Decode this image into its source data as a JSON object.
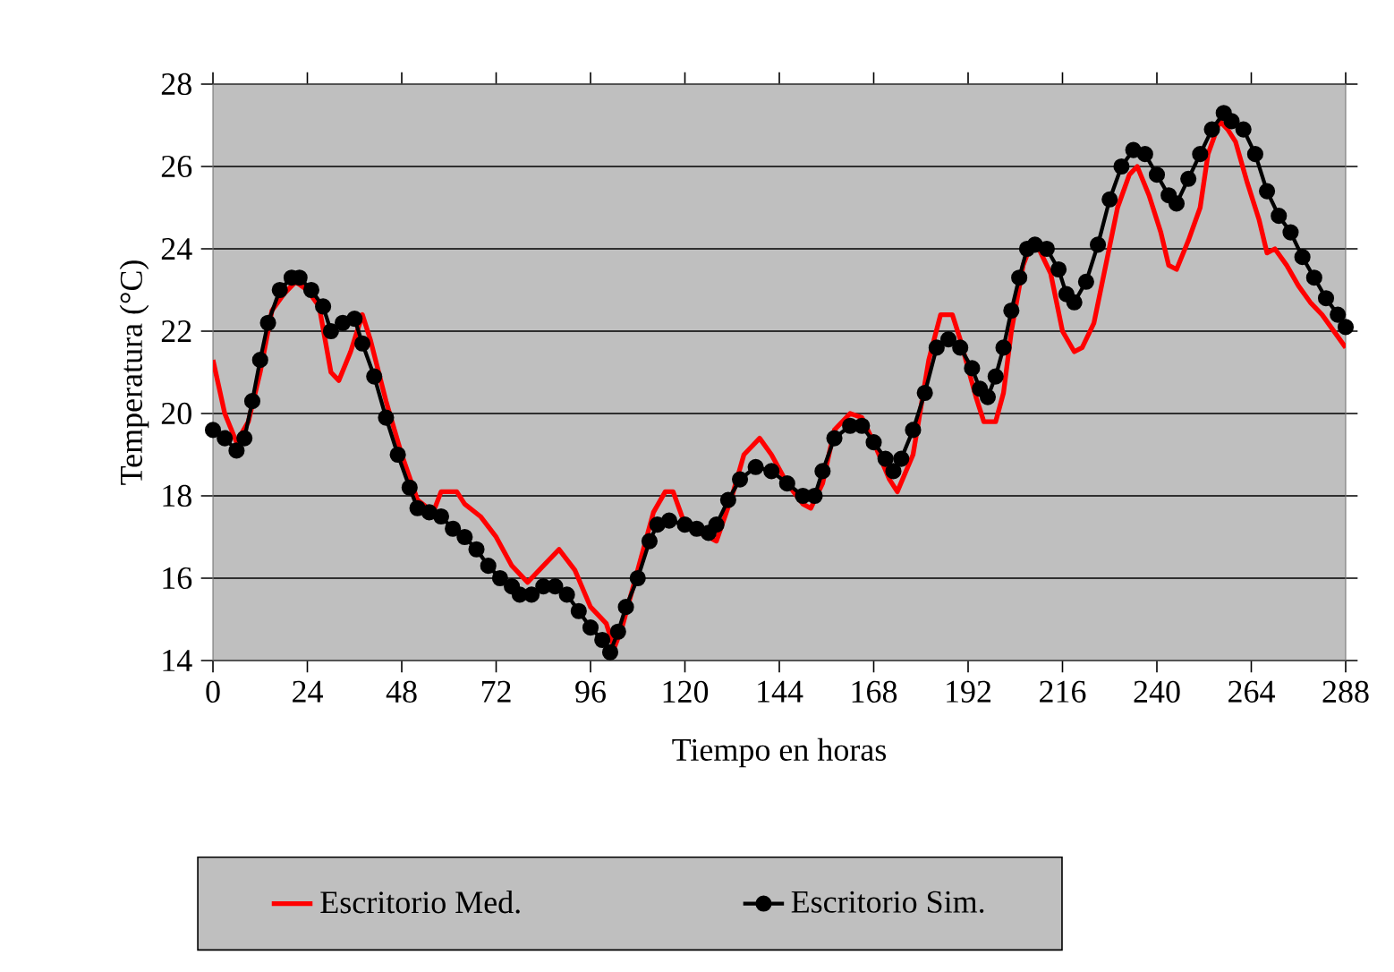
{
  "chart_data": {
    "type": "line",
    "xlabel": "Tiempo en horas",
    "ylabel": "Temperatura (°C)",
    "xlim": [
      0,
      288
    ],
    "xticks": [
      0,
      24,
      48,
      72,
      96,
      120,
      144,
      168,
      192,
      216,
      240,
      264,
      288
    ],
    "ylim": [
      14,
      28
    ],
    "yticks": [
      14,
      16,
      18,
      20,
      22,
      24,
      26,
      28
    ],
    "grid": "y",
    "legend": "bottom",
    "series": [
      {
        "name": "Escritorio Med.",
        "color": "#ff0000",
        "marker": "none",
        "x": [
          0,
          3,
          6,
          9,
          12,
          15,
          18,
          21,
          24,
          27,
          30,
          32,
          35,
          38,
          40,
          44,
          48,
          52,
          56,
          58,
          62,
          64,
          68,
          72,
          76,
          80,
          84,
          88,
          92,
          96,
          100,
          102,
          104,
          108,
          112,
          115,
          117,
          120,
          124,
          128,
          132,
          135,
          139,
          142,
          146,
          150,
          152,
          155,
          158,
          162,
          165,
          168,
          172,
          174,
          178,
          182,
          185,
          188,
          190,
          194,
          196,
          199,
          201,
          203,
          206,
          208,
          210,
          213,
          216,
          219,
          221,
          224,
          227,
          230,
          233,
          235,
          238,
          241,
          243,
          245,
          248,
          251,
          253,
          256,
          258,
          260,
          263,
          266,
          268,
          270,
          273,
          276,
          279,
          282,
          285,
          288
        ],
        "values": [
          21.3,
          20.0,
          19.3,
          19.8,
          21.0,
          22.5,
          22.9,
          23.2,
          23.0,
          22.6,
          21.0,
          20.8,
          21.5,
          22.4,
          21.8,
          20.3,
          19.0,
          17.9,
          17.6,
          18.1,
          18.1,
          17.8,
          17.5,
          17.0,
          16.3,
          15.9,
          16.3,
          16.7,
          16.2,
          15.3,
          14.9,
          14.3,
          14.8,
          null,
          17.6,
          18.1,
          18.1,
          17.3,
          null,
          16.9,
          18.0,
          19.0,
          19.4,
          19.0,
          18.3,
          17.8,
          17.7,
          18.3,
          19.6,
          20.0,
          19.9,
          19.3,
          18.4,
          18.1,
          19.0,
          21.3,
          22.4,
          22.4,
          21.8,
          20.4,
          19.8,
          19.8,
          20.5,
          22.0,
          23.6,
          24.1,
          24.0,
          23.4,
          22.0,
          21.5,
          21.6,
          22.2,
          23.6,
          25.0,
          25.8,
          26.0,
          25.3,
          24.4,
          23.6,
          23.5,
          24.2,
          25.0,
          26.3,
          27.1,
          26.9,
          26.6,
          25.6,
          24.7,
          23.9,
          24.0,
          23.6,
          23.1,
          22.7,
          22.4,
          22.0,
          21.6
        ]
      },
      {
        "name": "Escritorio Sim.",
        "color": "#000000",
        "marker": "circle",
        "x": [
          0,
          3,
          6,
          8,
          10,
          12,
          14,
          17,
          20,
          22,
          25,
          28,
          30,
          33,
          36,
          38,
          41,
          44,
          47,
          50,
          52,
          55,
          58,
          61,
          64,
          67,
          70,
          73,
          76,
          78,
          81,
          84,
          87,
          90,
          93,
          96,
          99,
          101,
          103,
          105,
          108,
          111,
          113,
          116,
          120,
          123,
          126,
          128,
          131,
          134,
          138,
          142,
          146,
          150,
          153,
          155,
          158,
          162,
          165,
          168,
          171,
          173,
          175,
          178,
          181,
          184,
          187,
          190,
          193,
          195,
          197,
          199,
          201,
          203,
          205,
          207,
          209,
          212,
          215,
          217,
          219,
          222,
          225,
          228,
          231,
          234,
          237,
          240,
          243,
          245,
          248,
          251,
          254,
          257,
          259,
          262,
          265,
          268,
          271,
          274,
          277,
          280,
          283,
          286,
          288
        ],
        "values": [
          19.6,
          19.4,
          19.1,
          19.4,
          20.3,
          21.3,
          22.2,
          23.0,
          23.3,
          23.3,
          23.0,
          22.6,
          22.0,
          22.2,
          22.3,
          21.7,
          20.9,
          19.9,
          19.0,
          18.2,
          17.7,
          17.6,
          17.5,
          17.2,
          17.0,
          16.7,
          16.3,
          16.0,
          15.8,
          15.6,
          15.6,
          15.8,
          15.8,
          15.6,
          15.2,
          14.8,
          14.5,
          14.2,
          14.7,
          15.3,
          16.0,
          16.9,
          17.3,
          17.4,
          17.3,
          17.2,
          17.1,
          17.3,
          17.9,
          18.4,
          18.7,
          18.6,
          18.3,
          18.0,
          18.0,
          18.6,
          19.4,
          19.7,
          19.7,
          19.3,
          18.9,
          18.6,
          18.9,
          19.6,
          20.5,
          21.6,
          21.8,
          21.6,
          21.1,
          20.6,
          20.4,
          20.9,
          21.6,
          22.5,
          23.3,
          24.0,
          24.1,
          24.0,
          23.5,
          22.9,
          22.7,
          23.2,
          24.1,
          25.2,
          26.0,
          26.4,
          26.3,
          25.8,
          25.3,
          25.1,
          25.7,
          26.3,
          26.9,
          27.3,
          27.1,
          26.9,
          26.3,
          25.4,
          24.8,
          24.4,
          23.8,
          23.3,
          22.8,
          22.4,
          22.1
        ]
      }
    ]
  }
}
